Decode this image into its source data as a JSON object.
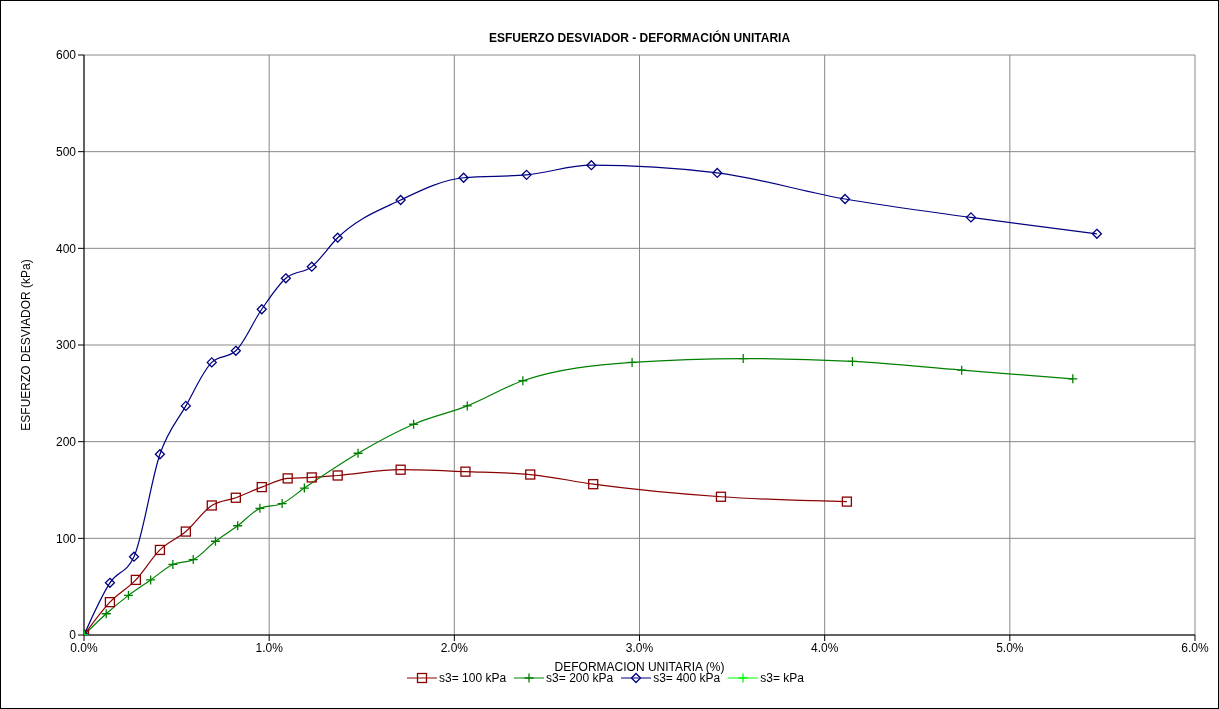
{
  "chart_data": {
    "type": "line",
    "title": "ESFUERZO DESVIADOR - DEFORMACIÓN UNITARIA",
    "xlabel": "DEFORMACION  UNITARIA (%)",
    "ylabel": "ESFUERZO DESVIADOR (kPa)",
    "xlim": [
      0,
      6
    ],
    "xticks": [
      {
        "value": 0,
        "label": "0.0%"
      },
      {
        "value": 1,
        "label": "1.0%"
      },
      {
        "value": 2,
        "label": "2.0%"
      },
      {
        "value": 3,
        "label": "3.0%"
      },
      {
        "value": 4,
        "label": "4.0%"
      },
      {
        "value": 5,
        "label": "5.0%"
      },
      {
        "value": 6,
        "label": "6.0%"
      }
    ],
    "ylim": [
      0,
      600
    ],
    "yticks": [
      0,
      100,
      200,
      300,
      400,
      500,
      600
    ],
    "grid": true,
    "legend": "bottom",
    "series": [
      {
        "name": "s3= 100 kPa",
        "color": "#8b0000",
        "marker": "square",
        "x": [
          0,
          0.14,
          0.28,
          0.41,
          0.55,
          0.69,
          0.82,
          0.96,
          1.1,
          1.23,
          1.37,
          1.71,
          2.06,
          2.41,
          2.75,
          3.44,
          4.12
        ],
        "values": [
          0,
          34,
          57,
          88,
          107,
          134,
          142,
          153,
          162,
          163,
          165,
          171,
          169,
          166,
          156,
          143,
          138
        ]
      },
      {
        "name": "s3= 200 kPa",
        "color": "#008000",
        "marker": "cross",
        "x": [
          0,
          0.12,
          0.24,
          0.36,
          0.48,
          0.59,
          0.71,
          0.83,
          0.95,
          1.07,
          1.19,
          1.48,
          1.78,
          2.07,
          2.37,
          2.96,
          3.56,
          4.15,
          4.74,
          5.34
        ],
        "values": [
          0,
          22,
          41,
          57,
          73,
          78,
          97,
          113,
          131,
          136,
          152,
          188,
          218,
          237,
          263,
          282,
          286,
          283,
          274,
          265
        ]
      },
      {
        "name": "s3= 400 kPa",
        "color": "#000080",
        "marker": "diamond",
        "x": [
          0,
          0.14,
          0.27,
          0.41,
          0.55,
          0.69,
          0.82,
          0.96,
          1.09,
          1.23,
          1.37,
          1.71,
          2.05,
          2.39,
          2.74,
          3.42,
          4.11,
          4.79,
          5.47
        ],
        "values": [
          0,
          54,
          81,
          187,
          237,
          282,
          294,
          337,
          369,
          381,
          411,
          450,
          473,
          476,
          486,
          478,
          451,
          432,
          415
        ]
      },
      {
        "name": "s3=  kPa",
        "color": "#00ff00",
        "marker": "cross",
        "x": [
          0
        ],
        "values": [
          0
        ]
      }
    ]
  }
}
